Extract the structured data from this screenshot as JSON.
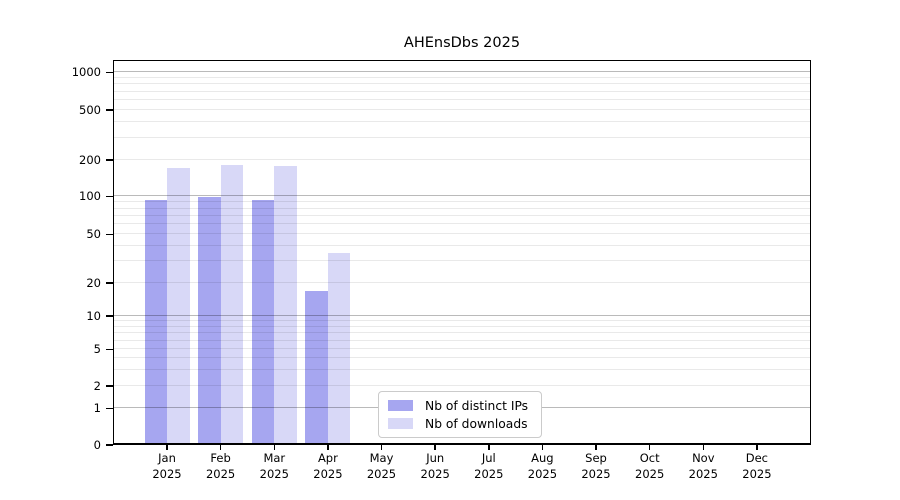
{
  "title": "AHEnsDbs 2025",
  "y_axis": {
    "tick_values": [
      0,
      1,
      2,
      5,
      10,
      20,
      50,
      100,
      200,
      500,
      1000
    ],
    "tick_labels": [
      "0",
      "1",
      "2",
      "5",
      "10",
      "20",
      "50",
      "100",
      "200",
      "500",
      "1000"
    ]
  },
  "x_axis": {
    "months": [
      {
        "label": "Jan",
        "year": "2025"
      },
      {
        "label": "Feb",
        "year": "2025"
      },
      {
        "label": "Mar",
        "year": "2025"
      },
      {
        "label": "Apr",
        "year": "2025"
      },
      {
        "label": "May",
        "year": "2025"
      },
      {
        "label": "Jun",
        "year": "2025"
      },
      {
        "label": "Jul",
        "year": "2025"
      },
      {
        "label": "Aug",
        "year": "2025"
      },
      {
        "label": "Sep",
        "year": "2025"
      },
      {
        "label": "Oct",
        "year": "2025"
      },
      {
        "label": "Nov",
        "year": "2025"
      },
      {
        "label": "Dec",
        "year": "2025"
      }
    ]
  },
  "legend": {
    "items": [
      {
        "label": "Nb of distinct IPs",
        "color": "#a6a6f0"
      },
      {
        "label": "Nb of downloads",
        "color": "#d8d8f7"
      }
    ]
  },
  "colors": {
    "bar_dark": "#a6a6f0",
    "bar_light": "#d8d8f7",
    "grid_major": "rgba(0,0,0,0.27)",
    "grid_minor": "rgba(0,0,0,0.085)",
    "axis": "#000000",
    "background": "#ffffff"
  },
  "chart_data": {
    "type": "bar",
    "title": "AHEnsDbs 2025",
    "categories": [
      "Jan 2025",
      "Feb 2025",
      "Mar 2025",
      "Apr 2025",
      "May 2025",
      "Jun 2025",
      "Jul 2025",
      "Aug 2025",
      "Sep 2025",
      "Oct 2025",
      "Nov 2025",
      "Dec 2025"
    ],
    "series": [
      {
        "name": "Nb of distinct IPs",
        "color": "#a6a6f0",
        "values": [
          94,
          98,
          94,
          17,
          0,
          0,
          0,
          0,
          0,
          0,
          0,
          0
        ]
      },
      {
        "name": "Nb of downloads",
        "color": "#d8d8f7",
        "values": [
          170,
          180,
          178,
          35,
          0,
          0,
          0,
          0,
          0,
          0,
          0,
          0
        ]
      }
    ],
    "yscale": "symlog",
    "y_ticks": [
      0,
      1,
      2,
      5,
      10,
      20,
      50,
      100,
      200,
      500,
      1000
    ],
    "ylim": [
      0,
      1500
    ],
    "minor_gridline_values": [
      3,
      4,
      6,
      7,
      8,
      9,
      30,
      40,
      60,
      70,
      80,
      90,
      300,
      400,
      600,
      700,
      800,
      900
    ],
    "grid": "horizontal major and minor",
    "legend_position": "lower center, inside axes"
  }
}
